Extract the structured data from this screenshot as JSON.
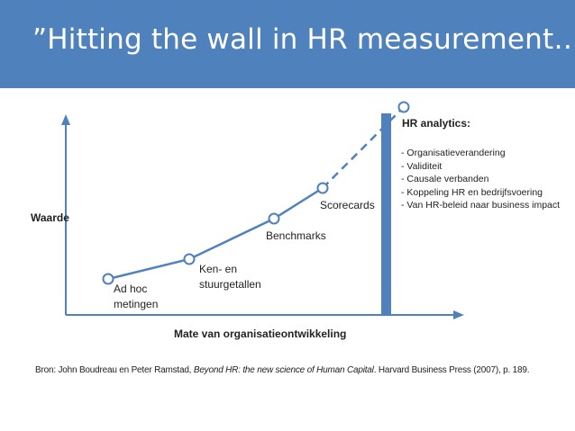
{
  "title": "”Hitting the wall in HR measurement…”",
  "diagram": {
    "y_axis_label": "Waarde",
    "x_axis_label": "Mate van organisatieontwikkeling",
    "stages": [
      {
        "label": "Ad hoc metingen",
        "lines": [
          "Ad hoc",
          "metingen"
        ]
      },
      {
        "label": "Ken- en stuurgetallen",
        "lines": [
          "Ken- en",
          "stuurgetallen"
        ]
      },
      {
        "label": "Benchmarks",
        "lines": [
          "Benchmarks"
        ]
      },
      {
        "label": "Scorecards",
        "lines": [
          "Scorecards"
        ]
      }
    ],
    "wall_label": "HR analytics:",
    "hr_analytics_items": [
      "- Organisatieverandering",
      "- Validiteit",
      "- Causale verbanden",
      "- Koppeling HR en bedrijfsvoering",
      "- Van HR-beleid naar business impact"
    ]
  },
  "source": {
    "prefix": "Bron: John Boudreau en Peter Ramstad, ",
    "book": "Beyond HR: the new science of Human Capital",
    "suffix": ". Harvard Business Press (2007), p. 189."
  },
  "colors": {
    "header": "#4f81bd",
    "line": "#4f81bd",
    "wall": "#4f81bd",
    "axis": "#4f81bd"
  }
}
